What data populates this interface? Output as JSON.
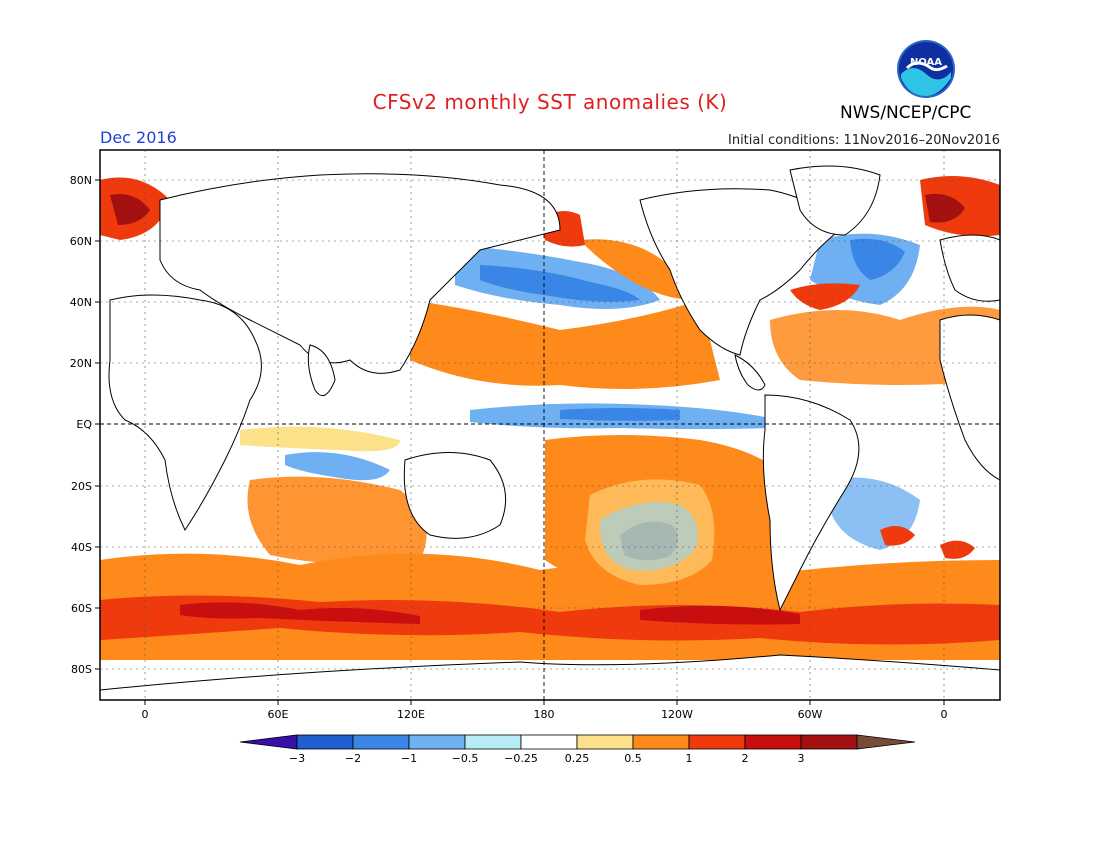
{
  "header": {
    "title": "CFSv2 monthly SST anomalies (K)",
    "agency": "NWS/NCEP/CPC",
    "period": "Dec 2016",
    "initial_conditions": "Initial conditions: 11Nov2016–20Nov2016"
  },
  "logo": {
    "text": "NOAA",
    "icon": "noaa-logo"
  },
  "axes": {
    "lat_labels": [
      "80N",
      "60N",
      "40N",
      "20N",
      "EQ",
      "20S",
      "40S",
      "60S",
      "80S"
    ],
    "lon_labels": [
      "0",
      "60E",
      "120E",
      "180",
      "120W",
      "60W",
      "0"
    ]
  },
  "legend": {
    "ticks": [
      "−3",
      "−2",
      "−1",
      "−0.5",
      "−0.25",
      "0.25",
      "0.5",
      "1",
      "2",
      "3"
    ],
    "colors": [
      "#3a0ea8",
      "#1f5fd0",
      "#3a86e6",
      "#6fb0f2",
      "#b6ecf4",
      "#ffffff",
      "#fde18a",
      "#fe8a1c",
      "#ee3a0c",
      "#c80e0e",
      "#a41010",
      "#7a4a38"
    ]
  },
  "map": {
    "land_color": "#ffffff",
    "ocean_neutral": "#ffffff",
    "grid_style": "dashed"
  }
}
